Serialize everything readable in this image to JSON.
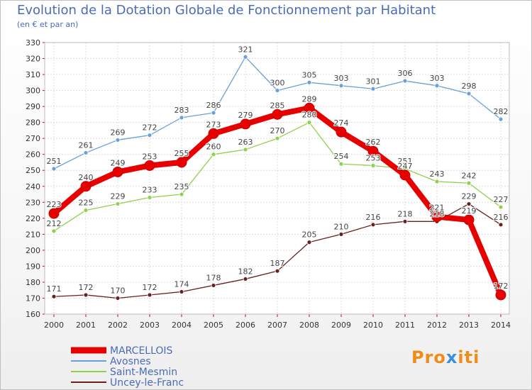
{
  "chart_data": {
    "type": "line",
    "title": "Evolution de la Dotation Globale de Fonctionnement par Habitant",
    "subtitle": "(en € et par an)",
    "categories": [
      "2000",
      "2001",
      "2002",
      "2003",
      "2004",
      "2005",
      "2006",
      "2007",
      "2008",
      "2009",
      "2010",
      "2011",
      "2012",
      "2013",
      "2014"
    ],
    "ylim": [
      160,
      330
    ],
    "yticks": [
      160,
      170,
      180,
      190,
      200,
      210,
      220,
      230,
      240,
      250,
      260,
      270,
      280,
      290,
      300,
      310,
      320,
      330
    ],
    "grid": true,
    "series": [
      {
        "name": "MARCELLOIS",
        "color": "#e60000",
        "bold": true,
        "values": [
          223,
          240,
          249,
          253,
          255,
          273,
          279,
          285,
          289,
          274,
          262,
          247,
          221,
          219,
          172
        ]
      },
      {
        "name": "Avosnes",
        "color": "#6aa0d8",
        "values": [
          251,
          261,
          269,
          272,
          283,
          286,
          321,
          300,
          305,
          303,
          301,
          306,
          303,
          298,
          282
        ]
      },
      {
        "name": "Saint-Mesmin",
        "color": "#8ed14a",
        "values": [
          212,
          225,
          229,
          233,
          235,
          260,
          263,
          270,
          280,
          254,
          253,
          251,
          243,
          242,
          227
        ]
      },
      {
        "name": "Uncey-le-Franc",
        "color": "#6b2020",
        "values": [
          171,
          172,
          170,
          172,
          174,
          178,
          182,
          187,
          205,
          210,
          216,
          218,
          218,
          229,
          216
        ]
      }
    ]
  },
  "logo": {
    "text1": "Pro",
    "text2": "x",
    "text3": "iti"
  }
}
